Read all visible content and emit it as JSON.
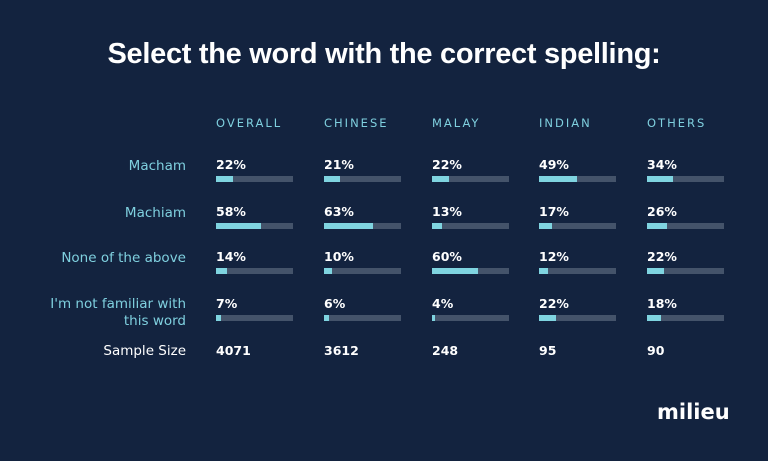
{
  "title": "Select the word with the correct spelling:",
  "columns": [
    "OVERALL",
    "CHINESE",
    "MALAY",
    "INDIAN",
    "OTHERS"
  ],
  "rows": [
    {
      "label": "Macham",
      "values": [
        "22%",
        "21%",
        "22%",
        "49%",
        "34%"
      ],
      "nums": [
        22,
        21,
        22,
        49,
        34
      ]
    },
    {
      "label": "Machiam",
      "values": [
        "58%",
        "63%",
        "13%",
        "17%",
        "26%"
      ],
      "nums": [
        58,
        63,
        13,
        17,
        26
      ]
    },
    {
      "label": "None of the above",
      "values": [
        "14%",
        "10%",
        "60%",
        "12%",
        "22%"
      ],
      "nums": [
        14,
        10,
        60,
        12,
        22
      ]
    },
    {
      "label_line1": "I'm not familiar with",
      "label_line2": "this word",
      "values": [
        "7%",
        "6%",
        "4%",
        "22%",
        "18%"
      ],
      "nums": [
        7,
        6,
        4,
        22,
        18
      ]
    }
  ],
  "sample": {
    "label": "Sample Size",
    "values": [
      "4071",
      "3612",
      "248",
      "95",
      "90"
    ]
  },
  "logo": "milieu",
  "colors": {
    "background": "#13233f",
    "accent": "#7fd4e0",
    "bar_track": "#44536a",
    "logo_dot": "#2fa7df"
  },
  "chart_data": {
    "type": "bar",
    "title": "Select the word with the correct spelling:",
    "categories": [
      "Macham",
      "Machiam",
      "None of the above",
      "I'm not familiar with this word"
    ],
    "series": [
      {
        "name": "OVERALL",
        "values": [
          22,
          58,
          14,
          7
        ],
        "sample_size": 4071
      },
      {
        "name": "CHINESE",
        "values": [
          21,
          63,
          10,
          6
        ],
        "sample_size": 3612
      },
      {
        "name": "MALAY",
        "values": [
          22,
          13,
          60,
          4
        ],
        "sample_size": 248
      },
      {
        "name": "INDIAN",
        "values": [
          49,
          17,
          12,
          22
        ],
        "sample_size": 95
      },
      {
        "name": "OTHERS",
        "values": [
          34,
          26,
          22,
          18
        ],
        "sample_size": 90
      }
    ],
    "unit": "%",
    "ylim": [
      0,
      100
    ],
    "orientation": "horizontal",
    "legend": "column headers"
  }
}
